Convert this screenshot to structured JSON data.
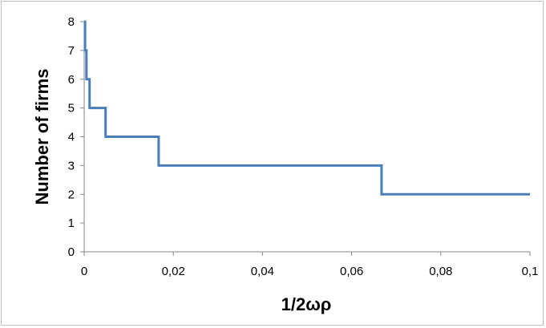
{
  "chart_data": {
    "type": "line",
    "title": "",
    "xlabel": "1/2ωρ",
    "ylabel": "Number of firms",
    "xlim": [
      0,
      0.1
    ],
    "ylim": [
      0,
      8
    ],
    "grid": false,
    "legend": "none",
    "x_ticks": [
      0,
      0.02,
      0.04,
      0.06,
      0.08,
      0.1
    ],
    "x_tick_labels": [
      "0",
      "0,02",
      "0,04",
      "0,06",
      "0,08",
      "0,1"
    ],
    "y_ticks": [
      0,
      1,
      2,
      3,
      4,
      5,
      6,
      7,
      8
    ],
    "y_tick_labels": [
      "0",
      "1",
      "2",
      "3",
      "4",
      "5",
      "6",
      "7",
      "8"
    ],
    "series": [
      {
        "color": "#4a7ebb",
        "points": [
          [
            0,
            8
          ],
          [
            0.0002,
            8
          ],
          [
            0.0002,
            7
          ],
          [
            0.0005,
            7
          ],
          [
            0.0005,
            6
          ],
          [
            0.0012,
            6
          ],
          [
            0.0012,
            5
          ],
          [
            0.0048,
            5
          ],
          [
            0.0048,
            4
          ],
          [
            0.0167,
            4
          ],
          [
            0.0167,
            3
          ],
          [
            0.0667,
            3
          ],
          [
            0.0667,
            2
          ],
          [
            0.1,
            2
          ]
        ]
      }
    ]
  }
}
